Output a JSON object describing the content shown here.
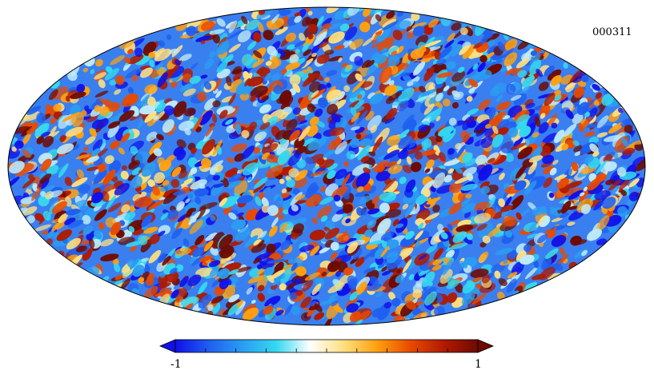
{
  "map": {
    "projection": "mollweide",
    "map_id": "000311",
    "field": "random-fluctuation-field"
  },
  "colorbar": {
    "min_label": "-1",
    "max_label": "1",
    "vmin": -1,
    "vmax": 1,
    "ticks": [
      -0.8,
      -0.6,
      -0.4,
      -0.2,
      0,
      0.2,
      0.4,
      0.6,
      0.8
    ],
    "colors": [
      "#1010e8",
      "#1f5ff0",
      "#2a9df2",
      "#34d8ef",
      "#ffffff",
      "#ffe080",
      "#ffa010",
      "#e84a00",
      "#b01a00",
      "#6e0a00"
    ]
  }
}
